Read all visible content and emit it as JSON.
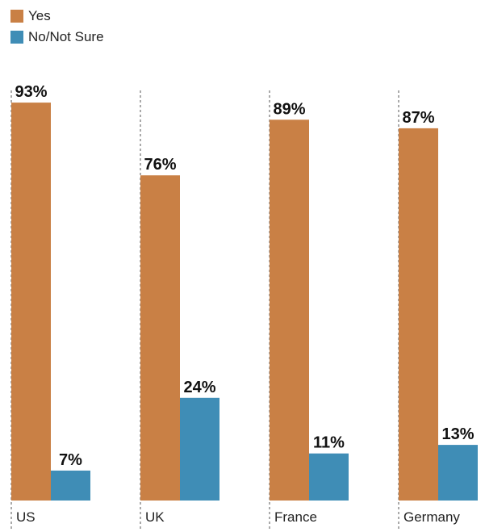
{
  "chart_data": {
    "type": "bar",
    "categories": [
      "US",
      "UK",
      "France",
      "Germany"
    ],
    "series": [
      {
        "name": "Yes",
        "values": [
          93,
          76,
          89,
          87
        ],
        "labels": [
          "93%",
          "76%",
          "89%",
          "87%"
        ],
        "color": "#c98045"
      },
      {
        "name": "No/Not Sure",
        "values": [
          7,
          24,
          11,
          13
        ],
        "labels": [
          "7%",
          "24%",
          "11%",
          "13%"
        ],
        "color": "#3f8db6"
      }
    ],
    "ylim": [
      0,
      100
    ],
    "legend": "top-left",
    "grid": false
  }
}
